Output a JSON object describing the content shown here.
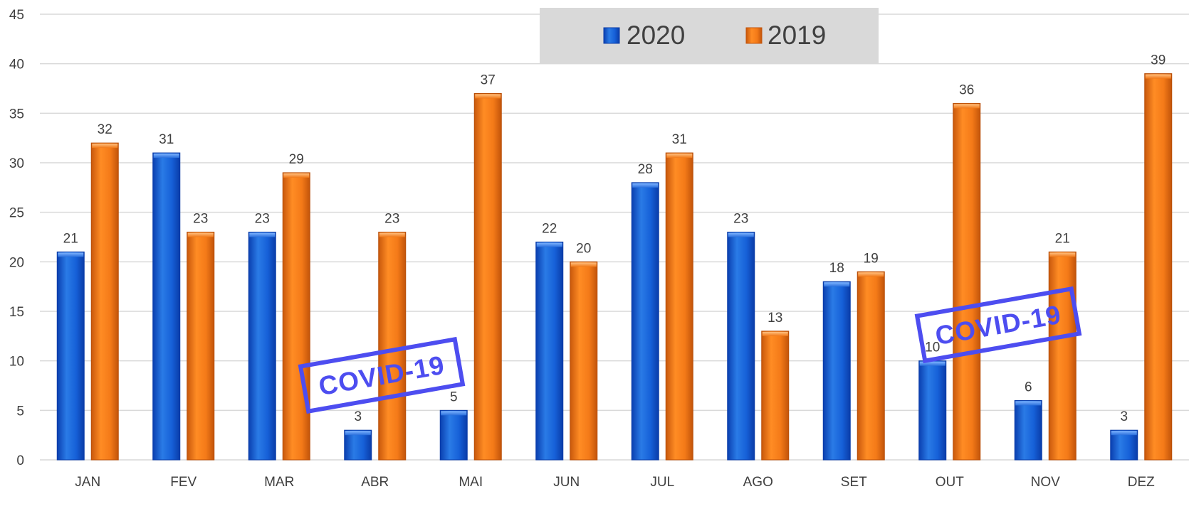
{
  "chart_data": {
    "type": "bar",
    "categories": [
      "JAN",
      "FEV",
      "MAR",
      "ABR",
      "MAI",
      "JUN",
      "JUL",
      "AGO",
      "SET",
      "OUT",
      "NOV",
      "DEZ"
    ],
    "series": [
      {
        "name": "2020",
        "color": "#1a5fd6",
        "values": [
          21,
          31,
          23,
          3,
          5,
          22,
          28,
          23,
          18,
          10,
          6,
          3
        ]
      },
      {
        "name": "2019",
        "color": "#f57a1a",
        "values": [
          32,
          23,
          29,
          23,
          37,
          20,
          31,
          13,
          19,
          36,
          21,
          39
        ]
      }
    ],
    "ylim": [
      0,
      45
    ],
    "yticks": [
      0,
      5,
      10,
      15,
      20,
      25,
      30,
      35,
      40,
      45
    ],
    "grid": true,
    "legend_placement": "top-right",
    "annotations": [
      {
        "text": "COVID-19",
        "near": "ABR"
      },
      {
        "text": "COVID-19",
        "near": "NOV"
      }
    ],
    "title": "",
    "xlabel": "",
    "ylabel": ""
  }
}
